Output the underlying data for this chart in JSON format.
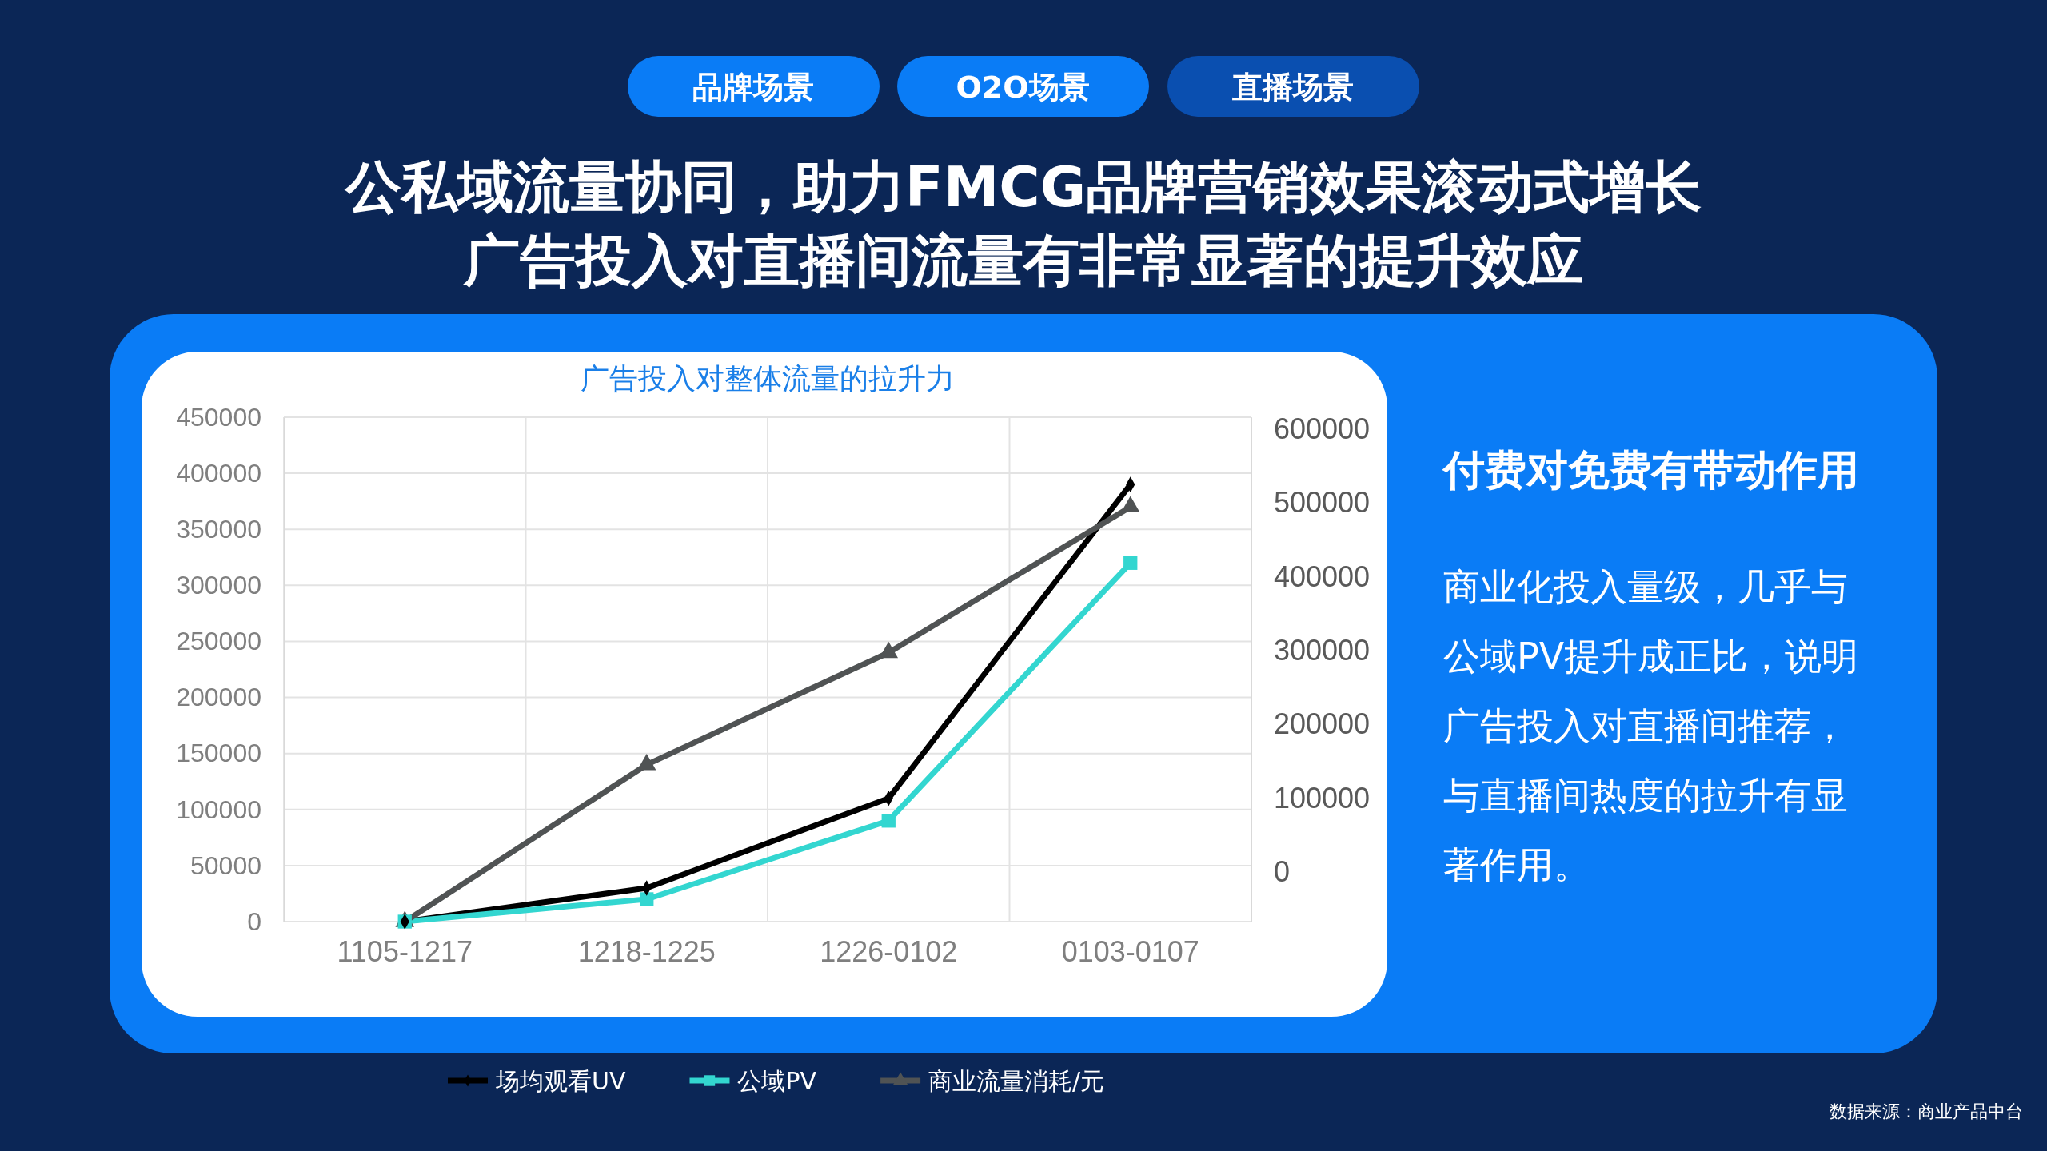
{
  "chart_data": {
    "type": "line",
    "title": "广告投入对整体流量的拉升力",
    "categories": [
      "1105-1217",
      "1218-1225",
      "1226-0102",
      "0103-0107"
    ],
    "series": [
      {
        "name": "场均观看UV",
        "color": "#000000",
        "marker": "diamond",
        "values": [
          0,
          30000,
          110000,
          390000
        ]
      },
      {
        "name": "公域PV",
        "color": "#33d6d0",
        "marker": "square",
        "values": [
          0,
          20000,
          90000,
          320000
        ]
      },
      {
        "name": "商业流量消耗/元",
        "color": "#505354",
        "marker": "triangle",
        "values": [
          0,
          140000,
          240000,
          370000
        ]
      }
    ],
    "ylim": [
      0,
      450000
    ],
    "yticks": [
      0,
      50000,
      100000,
      150000,
      200000,
      250000,
      300000,
      350000,
      400000,
      450000
    ],
    "y2lim": [
      -67000,
      616000
    ],
    "y2ticks": [
      0,
      100000,
      200000,
      300000,
      400000,
      500000,
      600000
    ],
    "grid": true,
    "legend": "bottom",
    "line_style": "solid",
    "annotations": [
      "品牌场景",
      "O2O场景",
      "直播场景",
      "公私域流量协同，助力FMCG品牌营销效果滚动式增长",
      "广告投入对直播间流量有非常显著的提升效应",
      "付费对免费有带动作用",
      "商业化投入量级，几乎与",
      "公域PV提升成正比，说明",
      "广告投入对直播间推荐，",
      "与直播间热度的拉升有显",
      "著作用。",
      "数据来源：商业产品中台"
    ]
  }
}
